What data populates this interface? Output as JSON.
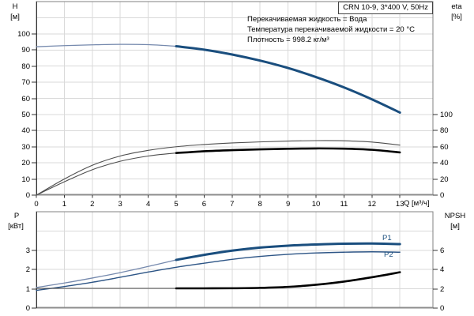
{
  "title": "CRN 10-9, 3*400 V, 50Hz",
  "conditions": [
    "Перекачиваемая жидкость = Вода",
    "Температура перекачиваемой жидкости = 20 °C",
    "Плотность = 998.2 кг/м³"
  ],
  "axis_labels": {
    "h": "H",
    "h_unit": "[м]",
    "eta": "eta",
    "eta_unit": "[%]",
    "p": "P",
    "p_unit": "[кВт]",
    "npsh": "NPSH",
    "npsh_unit": "[м]",
    "q": "Q [м³/ч]"
  },
  "series_labels": {
    "p1": "P1",
    "p2": "P2"
  },
  "colors": {
    "curve_main": "#1a4e7e",
    "curve_thin_blue": "#7589ad",
    "curve_blue_medium": "#2d5586",
    "curve_black": "#000000",
    "curve_gray": "#4d4d4d",
    "grid": "#d9d9d9",
    "frame": "#808080",
    "axis": "#333333"
  },
  "chart_data": [
    {
      "type": "line",
      "title": "CRN 10-9, 3*400 V, 50Hz",
      "xlabel": "Q [м³/ч]",
      "ylabel": "H [м]",
      "y2label": "eta [%]",
      "x_ticks": [
        0,
        1,
        2,
        3,
        4,
        5,
        6,
        7,
        8,
        9,
        10,
        11,
        12,
        13
      ],
      "y_ticks": [
        0,
        10,
        20,
        30,
        40,
        50,
        60,
        70,
        80,
        90,
        100
      ],
      "y2_ticks": [
        0,
        20,
        40,
        60,
        80,
        100
      ],
      "xlim": [
        0,
        14.2
      ],
      "ylim": [
        0,
        120
      ],
      "y2lim": [
        0,
        240
      ],
      "grid": true,
      "duty_range": [
        5,
        13
      ],
      "x": [
        0,
        1,
        2,
        3,
        4,
        5,
        6,
        7,
        8,
        9,
        10,
        11,
        12,
        13
      ],
      "series": [
        {
          "name": "H",
          "axis": "y",
          "values": [
            92,
            92.7,
            93.2,
            93.5,
            93.3,
            92.3,
            90.2,
            87.2,
            83.4,
            78.8,
            73.2,
            66.8,
            59.4,
            51.2
          ]
        },
        {
          "name": "eta_pump",
          "axis": "y2",
          "values": [
            0,
            20,
            37,
            48.5,
            55.5,
            60,
            62.8,
            64.7,
            66,
            67,
            67.6,
            67.4,
            65.8,
            62
          ]
        },
        {
          "name": "eta_pump_motor",
          "axis": "y2",
          "values": [
            0,
            16.5,
            31.5,
            42,
            48.5,
            52.2,
            54.4,
            55.8,
            56.8,
            57.5,
            57.9,
            57.6,
            56.2,
            53
          ]
        }
      ]
    },
    {
      "type": "line",
      "xlabel": "Q [м³/ч]",
      "ylabel": "P [кВт]",
      "y2label": "NPSH [м]",
      "x_ticks": [
        0,
        1,
        2,
        3,
        4,
        5,
        6,
        7,
        8,
        9,
        10,
        11,
        12,
        13
      ],
      "y_ticks": [
        0,
        1,
        2,
        3
      ],
      "y2_ticks": [
        0,
        2,
        4,
        6
      ],
      "xlim": [
        0,
        14.2
      ],
      "ylim": [
        0,
        5
      ],
      "y2lim": [
        0,
        10
      ],
      "grid": true,
      "duty_range": [
        5,
        13
      ],
      "x": [
        0,
        1,
        2,
        3,
        4,
        5,
        6,
        7,
        8,
        9,
        10,
        11,
        12,
        13
      ],
      "series": [
        {
          "name": "P1",
          "axis": "y",
          "values": [
            1.07,
            1.3,
            1.56,
            1.84,
            2.16,
            2.5,
            2.76,
            2.98,
            3.14,
            3.24,
            3.3,
            3.34,
            3.35,
            3.32
          ]
        },
        {
          "name": "P2",
          "axis": "y",
          "values": [
            0.92,
            1.12,
            1.34,
            1.6,
            1.87,
            2.12,
            2.33,
            2.53,
            2.68,
            2.79,
            2.86,
            2.9,
            2.92,
            2.9
          ]
        },
        {
          "name": "NPSH",
          "axis": "y2",
          "values": [
            2.05,
            2.05,
            2.05,
            2.05,
            2.05,
            2.05,
            2.05,
            2.06,
            2.1,
            2.2,
            2.42,
            2.75,
            3.2,
            3.72
          ]
        }
      ]
    }
  ]
}
